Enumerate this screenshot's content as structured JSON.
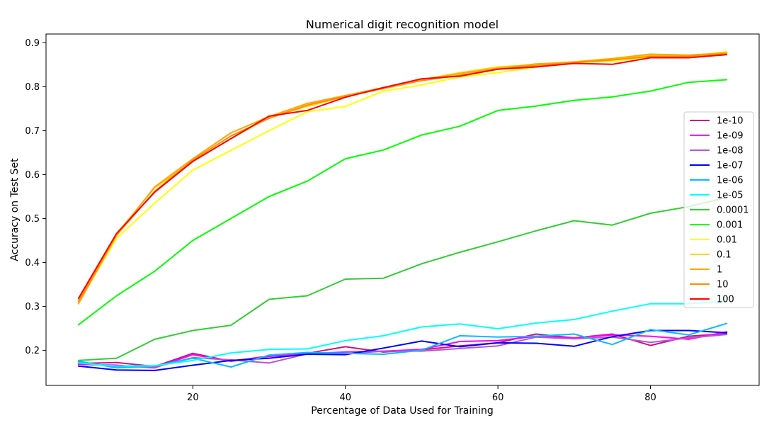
{
  "chart_data": {
    "type": "line",
    "title": "Numerical digit recognition model",
    "xlabel": "Percentage of Data Used for Training",
    "ylabel": "Accuracy on Test Set",
    "xlim": [
      0.75,
      94.25
    ],
    "ylim": [
      0.12,
      0.92
    ],
    "xticks": [
      20,
      40,
      60,
      80
    ],
    "yticks": [
      0.2,
      0.3,
      0.4,
      0.5,
      0.6,
      0.7,
      0.8,
      0.9
    ],
    "x": [
      5,
      10,
      15,
      20,
      25,
      30,
      35,
      40,
      45,
      50,
      55,
      60,
      65,
      70,
      75,
      80,
      85,
      90
    ],
    "grid": false,
    "legend_position": "center-right",
    "series": [
      {
        "name": "1e-10",
        "color": "#c71585",
        "values": [
          0.17,
          0.172,
          0.163,
          0.193,
          0.175,
          0.187,
          0.193,
          0.208,
          0.196,
          0.201,
          0.21,
          0.217,
          0.237,
          0.228,
          0.237,
          0.211,
          0.232,
          0.238
        ]
      },
      {
        "name": "1e-09",
        "color": "#ff00ff",
        "values": [
          0.168,
          0.166,
          0.16,
          0.19,
          0.175,
          0.186,
          0.192,
          0.196,
          0.198,
          0.202,
          0.22,
          0.222,
          0.232,
          0.228,
          0.235,
          0.232,
          0.225,
          0.242
        ]
      },
      {
        "name": "1e-08",
        "color": "#ba55d3",
        "values": [
          0.172,
          0.163,
          0.162,
          0.183,
          0.178,
          0.171,
          0.192,
          0.192,
          0.198,
          0.198,
          0.204,
          0.21,
          0.23,
          0.226,
          0.23,
          0.218,
          0.228,
          0.236
        ]
      },
      {
        "name": "1e-07",
        "color": "#0000ff",
        "values": [
          0.164,
          0.155,
          0.154,
          0.166,
          0.177,
          0.182,
          0.191,
          0.19,
          0.205,
          0.221,
          0.208,
          0.217,
          0.216,
          0.209,
          0.231,
          0.245,
          0.245,
          0.24
        ]
      },
      {
        "name": "1e-06",
        "color": "#00bfff",
        "values": [
          0.175,
          0.16,
          0.164,
          0.182,
          0.162,
          0.189,
          0.195,
          0.193,
          0.191,
          0.2,
          0.233,
          0.23,
          0.232,
          0.237,
          0.213,
          0.247,
          0.235,
          0.261
        ]
      },
      {
        "name": "1e-05",
        "color": "#00ffff",
        "values": [
          0.171,
          0.164,
          0.165,
          0.177,
          0.194,
          0.202,
          0.203,
          0.222,
          0.233,
          0.253,
          0.26,
          0.249,
          0.262,
          0.27,
          0.289,
          0.306,
          0.306,
          0.312
        ]
      },
      {
        "name": "0.0001",
        "color": "#32cd32",
        "values": [
          0.177,
          0.182,
          0.225,
          0.245,
          0.257,
          0.316,
          0.324,
          0.362,
          0.364,
          0.397,
          0.423,
          0.447,
          0.472,
          0.495,
          0.485,
          0.512,
          0.527,
          0.548
        ]
      },
      {
        "name": "0.001",
        "color": "#00ff00",
        "values": [
          0.258,
          0.324,
          0.38,
          0.45,
          0.5,
          0.55,
          0.585,
          0.636,
          0.656,
          0.69,
          0.71,
          0.746,
          0.756,
          0.769,
          0.777,
          0.79,
          0.81,
          0.816
        ]
      },
      {
        "name": "0.01",
        "color": "#ffff00",
        "values": [
          0.308,
          0.455,
          0.535,
          0.61,
          0.655,
          0.7,
          0.743,
          0.755,
          0.79,
          0.804,
          0.822,
          0.832,
          0.845,
          0.855,
          0.858,
          0.868,
          0.868,
          0.88
        ]
      },
      {
        "name": "0.1",
        "color": "#ffd700",
        "values": [
          0.31,
          0.465,
          0.57,
          0.63,
          0.682,
          0.73,
          0.755,
          0.778,
          0.798,
          0.816,
          0.832,
          0.845,
          0.85,
          0.857,
          0.864,
          0.872,
          0.87,
          0.878
        ]
      },
      {
        "name": "1",
        "color": "#ffa500",
        "values": [
          0.306,
          0.462,
          0.572,
          0.636,
          0.695,
          0.732,
          0.762,
          0.78,
          0.798,
          0.815,
          0.83,
          0.842,
          0.852,
          0.856,
          0.864,
          0.874,
          0.872,
          0.877
        ]
      },
      {
        "name": "10",
        "color": "#ff8c00",
        "values": [
          0.312,
          0.462,
          0.562,
          0.633,
          0.688,
          0.728,
          0.758,
          0.778,
          0.796,
          0.814,
          0.826,
          0.84,
          0.848,
          0.855,
          0.861,
          0.869,
          0.869,
          0.875
        ]
      },
      {
        "name": "100",
        "color": "#ff0000",
        "values": [
          0.318,
          0.466,
          0.56,
          0.63,
          0.682,
          0.733,
          0.746,
          0.776,
          0.798,
          0.818,
          0.824,
          0.84,
          0.845,
          0.853,
          0.851,
          0.866,
          0.866,
          0.873
        ]
      }
    ]
  }
}
